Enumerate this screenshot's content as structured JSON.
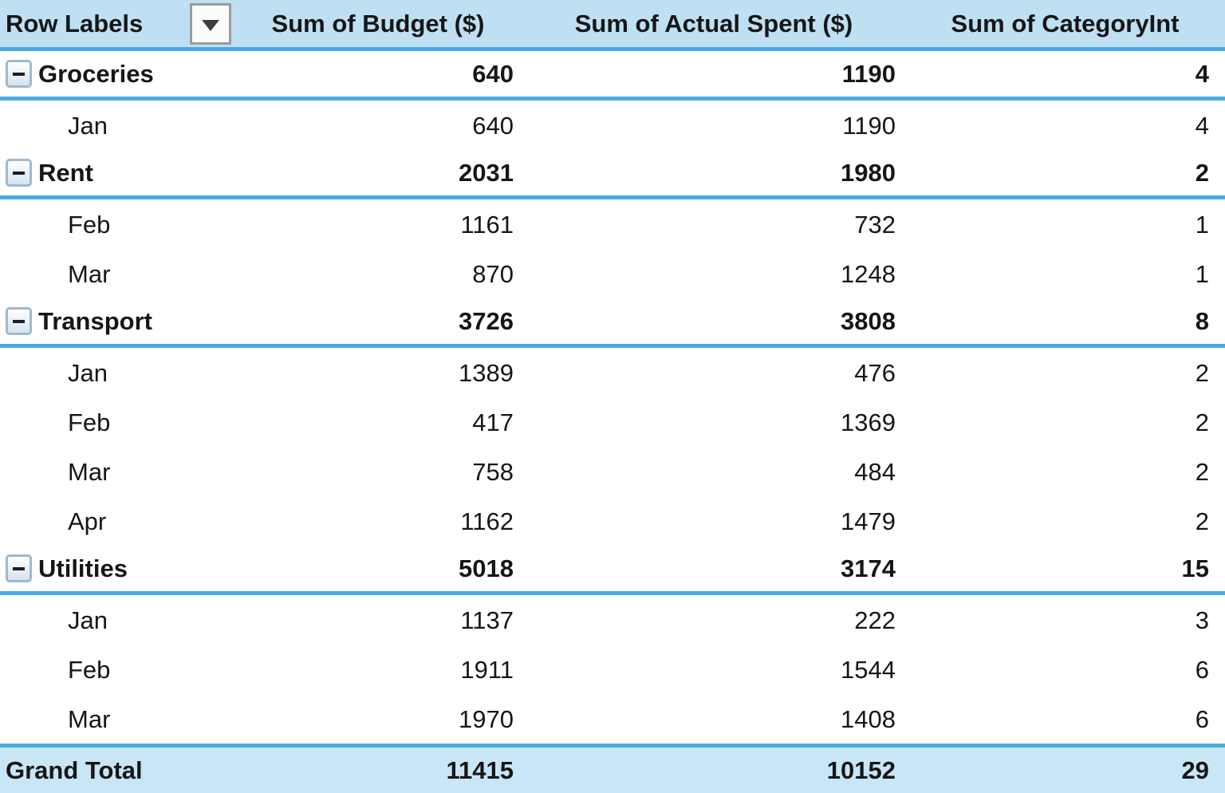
{
  "table": {
    "columns": [
      {
        "label": "Row Labels"
      },
      {
        "label": "Sum of Budget ($)"
      },
      {
        "label": "Sum of Actual Spent ($)"
      },
      {
        "label": "Sum of CategoryInt"
      }
    ],
    "rows": [
      {
        "type": "group",
        "label": "Groceries",
        "budget": "640",
        "actual": "1190",
        "category": "4"
      },
      {
        "type": "detail",
        "label": "Jan",
        "budget": "640",
        "actual": "1190",
        "category": "4"
      },
      {
        "type": "group",
        "label": "Rent",
        "budget": "2031",
        "actual": "1980",
        "category": "2"
      },
      {
        "type": "detail",
        "label": "Feb",
        "budget": "1161",
        "actual": "732",
        "category": "1"
      },
      {
        "type": "detail",
        "label": "Mar",
        "budget": "870",
        "actual": "1248",
        "category": "1"
      },
      {
        "type": "group",
        "label": "Transport",
        "budget": "3726",
        "actual": "3808",
        "category": "8"
      },
      {
        "type": "detail",
        "label": "Jan",
        "budget": "1389",
        "actual": "476",
        "category": "2"
      },
      {
        "type": "detail",
        "label": "Feb",
        "budget": "417",
        "actual": "1369",
        "category": "2"
      },
      {
        "type": "detail",
        "label": "Mar",
        "budget": "758",
        "actual": "484",
        "category": "2"
      },
      {
        "type": "detail",
        "label": "Apr",
        "budget": "1162",
        "actual": "1479",
        "category": "2"
      },
      {
        "type": "group",
        "label": "Utilities",
        "budget": "5018",
        "actual": "3174",
        "category": "15"
      },
      {
        "type": "detail",
        "label": "Jan",
        "budget": "1137",
        "actual": "222",
        "category": "3"
      },
      {
        "type": "detail",
        "label": "Feb",
        "budget": "1911",
        "actual": "1544",
        "category": "6"
      },
      {
        "type": "detail",
        "label": "Mar",
        "budget": "1970",
        "actual": "1408",
        "category": "6"
      },
      {
        "type": "grandtotal",
        "label": "Grand Total",
        "budget": "11415",
        "actual": "10152",
        "category": "29"
      }
    ],
    "colors": {
      "header_bg": "#BEE0F2",
      "grand_total_bg": "#C9E6F6",
      "border_blue": "#4AABDF",
      "text": "#161616"
    }
  }
}
